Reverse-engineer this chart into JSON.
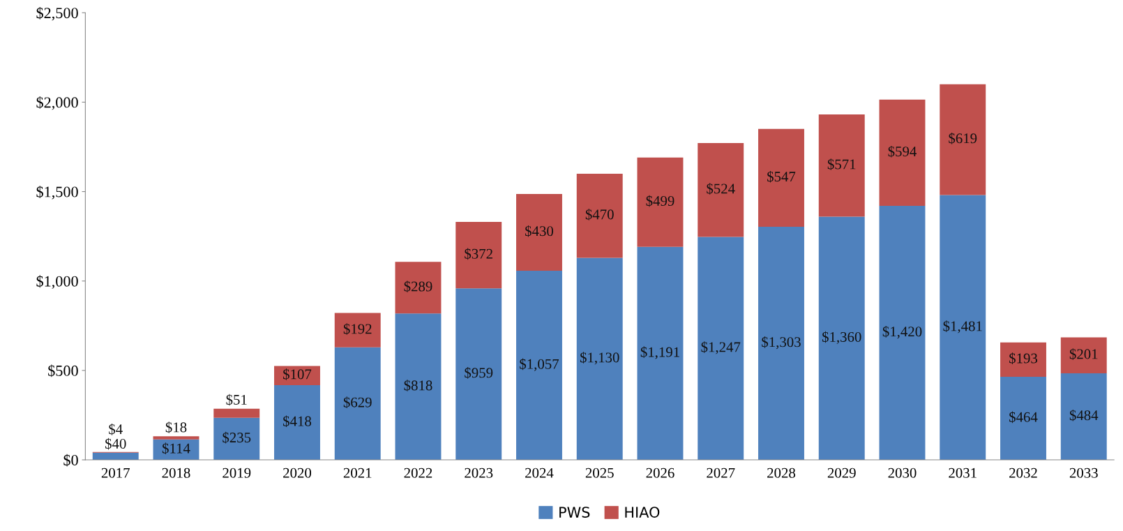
{
  "chart_data": {
    "type": "bar",
    "stacked": true,
    "categories": [
      "2017",
      "2018",
      "2019",
      "2020",
      "2021",
      "2022",
      "2023",
      "2024",
      "2025",
      "2026",
      "2027",
      "2028",
      "2029",
      "2030",
      "2031",
      "2032",
      "2033"
    ],
    "series": [
      {
        "name": "PWS",
        "color": "#4f81bd",
        "values": [
          40,
          114,
          235,
          418,
          629,
          818,
          959,
          1057,
          1130,
          1191,
          1247,
          1303,
          1360,
          1420,
          1481,
          464,
          484
        ],
        "value_labels": [
          "$40",
          "$114",
          "$235",
          "$418",
          "$629",
          "$818",
          "$959",
          "$1,057",
          "$1,130",
          "$1,191",
          "$1,247",
          "$1,303",
          "$1,360",
          "$1,420",
          "$1,481",
          "$464",
          "$484"
        ]
      },
      {
        "name": "HIAO",
        "color": "#c0504d",
        "values": [
          4,
          18,
          51,
          107,
          192,
          289,
          372,
          430,
          470,
          499,
          524,
          547,
          571,
          594,
          619,
          193,
          201
        ],
        "value_labels": [
          "$4",
          "$18",
          "$51",
          "$107",
          "$192",
          "$289",
          "$372",
          "$430",
          "$470",
          "$499",
          "$524",
          "$547",
          "$571",
          "$594",
          "$619",
          "$193",
          "$201"
        ]
      }
    ],
    "ylim": [
      0,
      2500
    ],
    "yticks": [
      {
        "value": 0,
        "label": "$0"
      },
      {
        "value": 500,
        "label": "$500"
      },
      {
        "value": 1000,
        "label": "$1,000"
      },
      {
        "value": 1500,
        "label": "$1,500"
      },
      {
        "value": 2000,
        "label": "$2,000"
      },
      {
        "value": 2500,
        "label": "$2,500"
      }
    ],
    "grid": false,
    "legend": "bottom"
  }
}
